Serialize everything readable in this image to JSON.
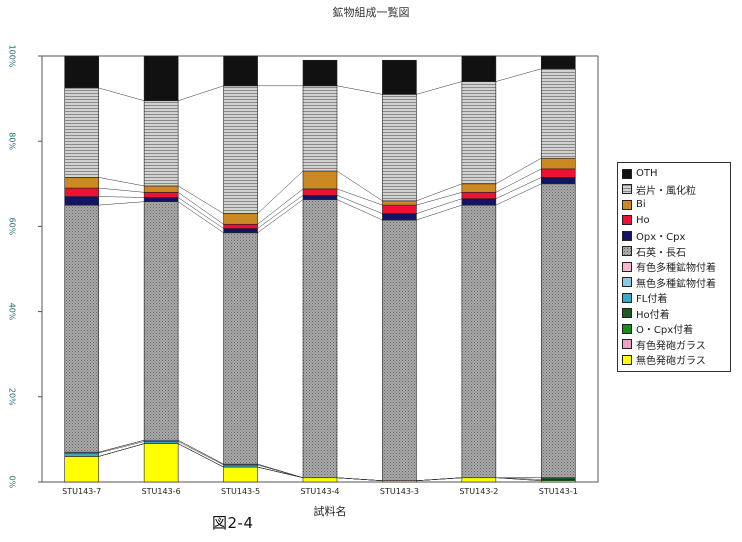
{
  "chart_data": {
    "type": "bar",
    "stacked": true,
    "percent_stacked": true,
    "title": "鉱物組成一覧図",
    "xlabel": "試料名",
    "ylabel": "",
    "ylim": [
      0,
      100
    ],
    "yticks": [
      "0%",
      "20%",
      "40%",
      "60%",
      "80%",
      "100%"
    ],
    "figure_label": "図2-4",
    "categories": [
      "STU143-7",
      "STU143-6",
      "STU143-5",
      "STU143-4",
      "STU143-3",
      "STU143-2",
      "STU143-1"
    ],
    "series": [
      {
        "name": "無色発砲ガラス",
        "color": "#ffff00",
        "pattern": "solid",
        "values": [
          6.0,
          9.0,
          3.5,
          1.0,
          0.3,
          1.0,
          0.3
        ]
      },
      {
        "name": "有色発砲ガラス",
        "color": "#f0a0c0",
        "pattern": "solid",
        "values": [
          0.0,
          0.0,
          0.0,
          0.0,
          0.0,
          0.0,
          0.0
        ]
      },
      {
        "name": "O・Cpx付着",
        "color": "#1a8a1a",
        "pattern": "solid",
        "values": [
          0.0,
          0.0,
          0.0,
          0.0,
          0.0,
          0.0,
          0.3
        ]
      },
      {
        "name": "Ho付着",
        "color": "#1f5a1f",
        "pattern": "solid",
        "values": [
          0.0,
          0.0,
          0.0,
          0.0,
          0.0,
          0.0,
          0.4
        ]
      },
      {
        "name": "FL付着",
        "color": "#3aa8c8",
        "pattern": "solid",
        "values": [
          0.8,
          0.5,
          0.5,
          0.0,
          0.0,
          0.0,
          0.0
        ]
      },
      {
        "name": "無色多種鉱物付着",
        "color": "#8ec6e6",
        "pattern": "solid",
        "values": [
          0.2,
          0.3,
          0.2,
          0.0,
          0.0,
          0.0,
          0.0
        ]
      },
      {
        "name": "有色多種鉱物付着",
        "color": "#f4b6d0",
        "pattern": "solid",
        "values": [
          0.0,
          0.0,
          0.0,
          0.0,
          0.0,
          0.0,
          0.0
        ]
      },
      {
        "name": "石英・長石",
        "color": "#9a9a9a",
        "pattern": "dots",
        "values": [
          58.0,
          56.0,
          54.3,
          65.3,
          61.2,
          64.0,
          69.0
        ]
      },
      {
        "name": "Opx・Cpx",
        "color": "#141466",
        "pattern": "solid",
        "values": [
          2.0,
          1.0,
          1.0,
          1.0,
          1.5,
          1.5,
          1.5
        ]
      },
      {
        "name": "Ho",
        "color": "#ee1133",
        "pattern": "solid",
        "values": [
          2.0,
          1.2,
          1.0,
          1.5,
          2.0,
          1.5,
          2.0
        ]
      },
      {
        "name": "Bi",
        "color": "#cc8822",
        "pattern": "solid",
        "values": [
          2.5,
          1.5,
          2.5,
          4.2,
          1.0,
          2.0,
          2.5
        ]
      },
      {
        "name": "岩片・風化粒",
        "color": "#c8c8c8",
        "pattern": "hatch",
        "values": [
          21.0,
          20.0,
          30.0,
          20.0,
          25.0,
          24.0,
          21.0
        ]
      },
      {
        "name": "OTH",
        "color": "#111111",
        "pattern": "solid",
        "values": [
          7.5,
          10.5,
          7.0,
          6.0,
          8.0,
          6.0,
          3.0
        ]
      }
    ]
  }
}
